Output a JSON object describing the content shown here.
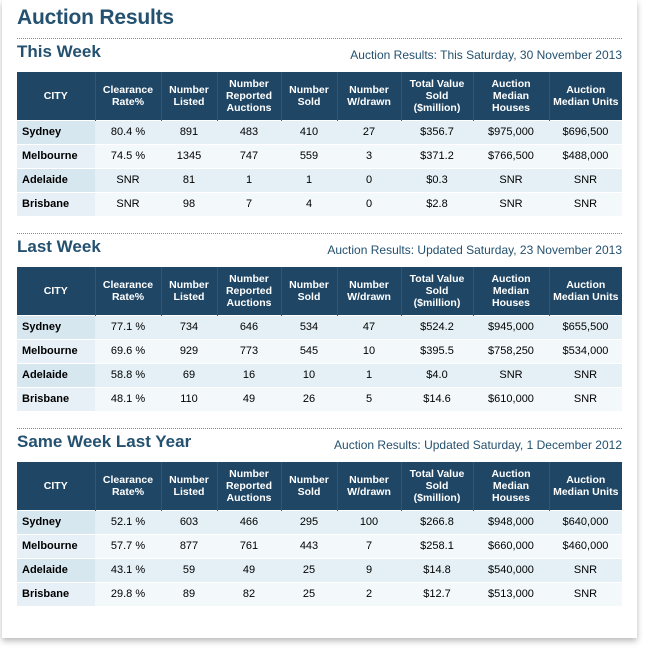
{
  "page_title": "Auction Results",
  "columns": [
    "CITY",
    "Clearance Rate%",
    "Number Listed",
    "Number Reported Auctions",
    "Number Sold",
    "Number W/drawn",
    "Total Value Sold ($million)",
    "Auction Median Houses",
    "Auction Median Units"
  ],
  "sections": [
    {
      "title": "This Week",
      "subtitle": "Auction Results: This Saturday, 30 November 2013",
      "rows": [
        [
          "Sydney",
          "80.4 %",
          "891",
          "483",
          "410",
          "27",
          "$356.7",
          "$975,000",
          "$696,500"
        ],
        [
          "Melbourne",
          "74.5 %",
          "1345",
          "747",
          "559",
          "3",
          "$371.2",
          "$766,500",
          "$488,000"
        ],
        [
          "Adelaide",
          "SNR",
          "81",
          "1",
          "1",
          "0",
          "$0.3",
          "SNR",
          "SNR"
        ],
        [
          "Brisbane",
          "SNR",
          "98",
          "7",
          "4",
          "0",
          "$2.8",
          "SNR",
          "SNR"
        ]
      ]
    },
    {
      "title": "Last Week",
      "subtitle": "Auction Results: Updated Saturday, 23 November 2013",
      "rows": [
        [
          "Sydney",
          "77.1 %",
          "734",
          "646",
          "534",
          "47",
          "$524.2",
          "$945,000",
          "$655,500"
        ],
        [
          "Melbourne",
          "69.6 %",
          "929",
          "773",
          "545",
          "10",
          "$395.5",
          "$758,250",
          "$534,000"
        ],
        [
          "Adelaide",
          "58.8 %",
          "69",
          "16",
          "10",
          "1",
          "$4.0",
          "SNR",
          "SNR"
        ],
        [
          "Brisbane",
          "48.1 %",
          "110",
          "49",
          "26",
          "5",
          "$14.6",
          "$610,000",
          "SNR"
        ]
      ]
    },
    {
      "title": "Same Week Last Year",
      "subtitle": "Auction Results: Updated Saturday, 1 December 2012",
      "rows": [
        [
          "Sydney",
          "52.1 %",
          "603",
          "466",
          "295",
          "100",
          "$266.8",
          "$948,000",
          "$640,000"
        ],
        [
          "Melbourne",
          "57.7 %",
          "877",
          "761",
          "443",
          "7",
          "$258.1",
          "$660,000",
          "$460,000"
        ],
        [
          "Adelaide",
          "43.1 %",
          "59",
          "49",
          "25",
          "9",
          "$14.8",
          "$540,000",
          "SNR"
        ],
        [
          "Brisbane",
          "29.8 %",
          "89",
          "82",
          "25",
          "2",
          "$12.7",
          "$513,000",
          "SNR"
        ]
      ]
    }
  ],
  "colors": {
    "title": "#24516f",
    "header_bg": "#1f4665",
    "header_text": "#ffffff",
    "row_odd": "#e4f0f6",
    "row_even": "#f3f8fb"
  }
}
